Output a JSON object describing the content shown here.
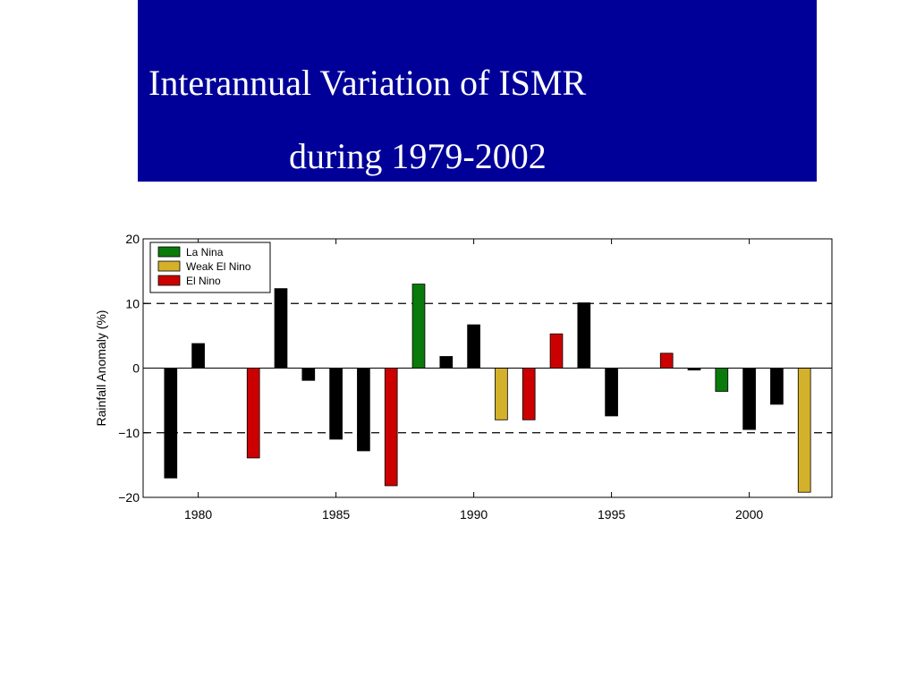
{
  "slide": {
    "title_line_1": "Interannual Variation of ISMR",
    "title_line_2": "during 1979-2002",
    "title_bg": "#000099",
    "title_color": "#ffffff"
  },
  "chart_data": {
    "type": "bar",
    "title": "",
    "xlabel": "",
    "ylabel": "Rainfall Anomaly (%)",
    "xlim": [
      1978,
      2003
    ],
    "ylim": [
      -20,
      20
    ],
    "xticks": [
      1980,
      1985,
      1990,
      1995,
      2000
    ],
    "yticks": [
      -20,
      -10,
      0,
      10,
      20
    ],
    "ytick_labels": [
      "−20",
      "−10",
      "0",
      "10",
      "20"
    ],
    "reference_lines": [
      10,
      -10
    ],
    "grid": false,
    "legend_position": "top-left",
    "categories_legend": [
      {
        "key": "la_nina",
        "label": "La Nina",
        "color": "#0a7a0a"
      },
      {
        "key": "weak_el_nino",
        "label": "Weak El Nino",
        "color": "#d4b12a"
      },
      {
        "key": "el_nino",
        "label": "El Nino",
        "color": "#cc0000"
      }
    ],
    "neutral_color": "#000000",
    "bars": [
      {
        "year": 1979,
        "value": -17.0,
        "category": "neutral"
      },
      {
        "year": 1980,
        "value": 3.8,
        "category": "neutral"
      },
      {
        "year": 1982,
        "value": -13.9,
        "category": "el_nino"
      },
      {
        "year": 1983,
        "value": 12.3,
        "category": "neutral"
      },
      {
        "year": 1984,
        "value": -1.9,
        "category": "neutral"
      },
      {
        "year": 1985,
        "value": -11.0,
        "category": "neutral"
      },
      {
        "year": 1986,
        "value": -12.8,
        "category": "neutral"
      },
      {
        "year": 1987,
        "value": -18.2,
        "category": "el_nino"
      },
      {
        "year": 1988,
        "value": 13.0,
        "category": "la_nina"
      },
      {
        "year": 1989,
        "value": 1.8,
        "category": "neutral"
      },
      {
        "year": 1990,
        "value": 6.7,
        "category": "neutral"
      },
      {
        "year": 1991,
        "value": -8.0,
        "category": "weak_el_nino"
      },
      {
        "year": 1992,
        "value": -8.0,
        "category": "el_nino"
      },
      {
        "year": 1993,
        "value": 5.3,
        "category": "el_nino"
      },
      {
        "year": 1994,
        "value": 10.1,
        "category": "neutral"
      },
      {
        "year": 1995,
        "value": -7.4,
        "category": "neutral"
      },
      {
        "year": 1997,
        "value": 2.3,
        "category": "el_nino"
      },
      {
        "year": 1998,
        "value": -0.3,
        "category": "neutral"
      },
      {
        "year": 1999,
        "value": -3.6,
        "category": "la_nina"
      },
      {
        "year": 2000,
        "value": -9.5,
        "category": "neutral"
      },
      {
        "year": 2001,
        "value": -5.6,
        "category": "neutral"
      },
      {
        "year": 2002,
        "value": -19.2,
        "category": "weak_el_nino"
      }
    ]
  }
}
